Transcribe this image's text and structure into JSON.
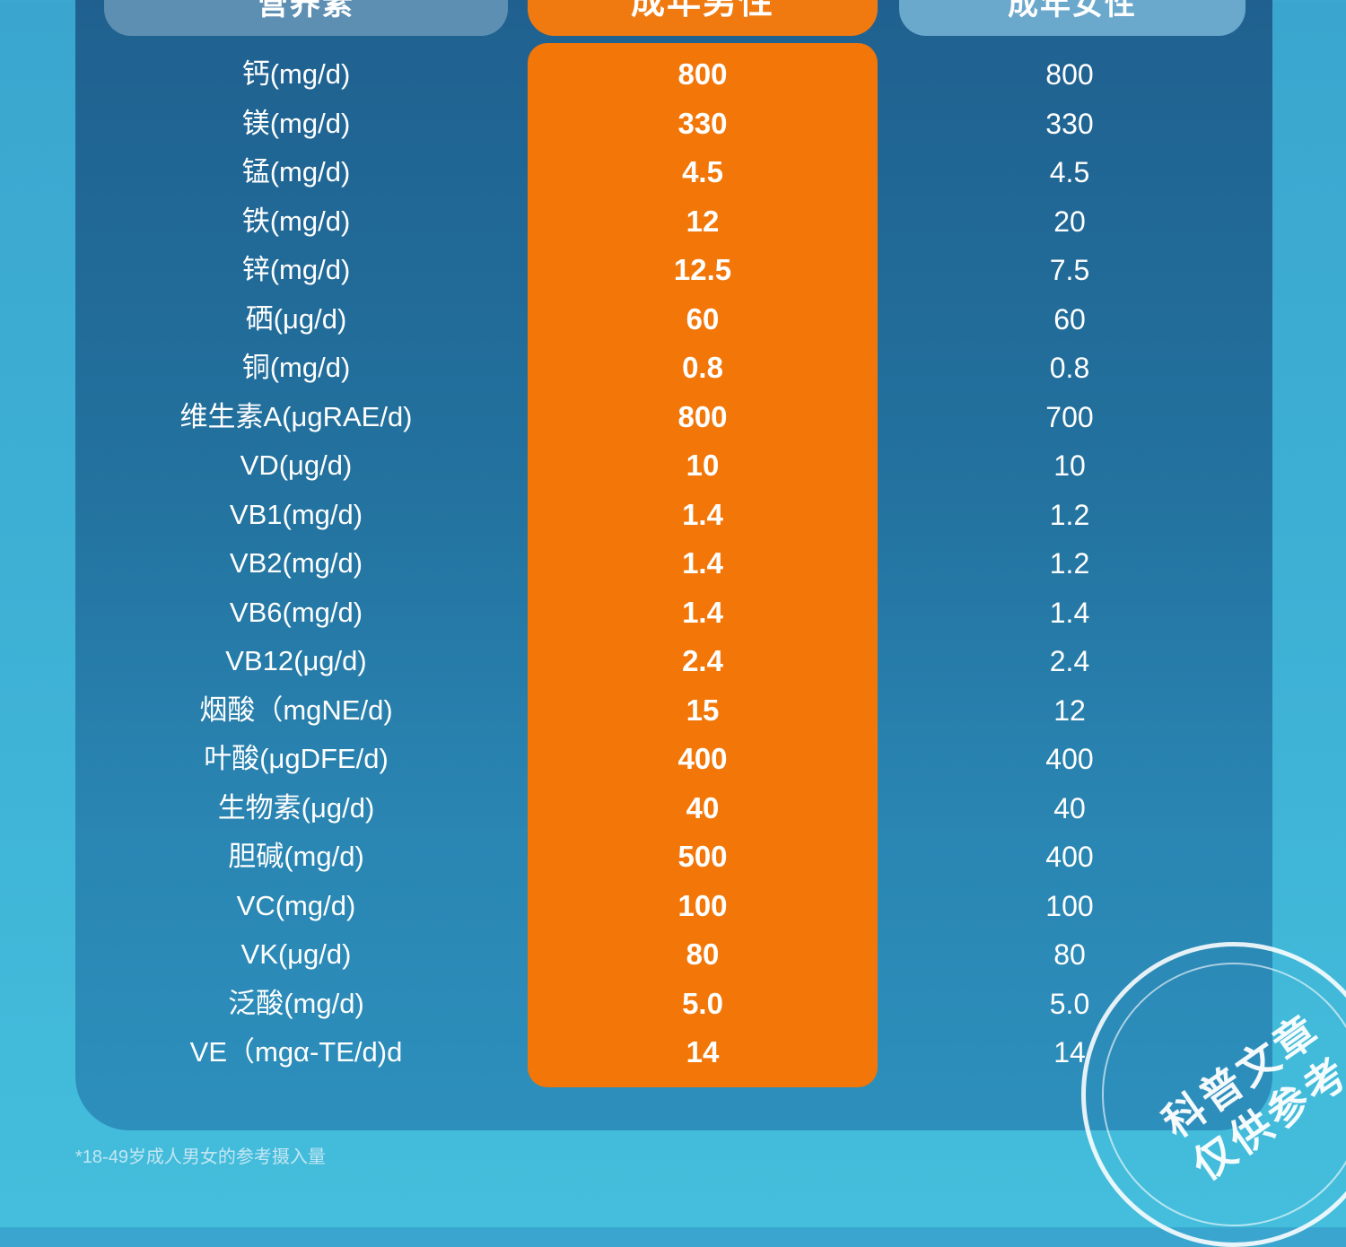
{
  "header": {
    "col_nutrient": "营养素",
    "col_male": "成年男性",
    "col_female": "成年女性"
  },
  "rows": [
    {
      "name": "钙(mg/d)",
      "male": "800",
      "female": "800"
    },
    {
      "name": "镁(mg/d)",
      "male": "330",
      "female": "330"
    },
    {
      "name": "锰(mg/d)",
      "male": "4.5",
      "female": "4.5"
    },
    {
      "name": "铁(mg/d)",
      "male": "12",
      "female": "20"
    },
    {
      "name": "锌(mg/d)",
      "male": "12.5",
      "female": "7.5"
    },
    {
      "name": "硒(μg/d)",
      "male": "60",
      "female": "60"
    },
    {
      "name": "铜(mg/d)",
      "male": "0.8",
      "female": "0.8"
    },
    {
      "name": "维生素A(μgRAE/d)",
      "male": "800",
      "female": "700"
    },
    {
      "name": "VD(μg/d)",
      "male": "10",
      "female": "10"
    },
    {
      "name": "VB1(mg/d)",
      "male": "1.4",
      "female": "1.2"
    },
    {
      "name": "VB2(mg/d)",
      "male": "1.4",
      "female": "1.2"
    },
    {
      "name": "VB6(mg/d)",
      "male": "1.4",
      "female": "1.4"
    },
    {
      "name": "VB12(μg/d)",
      "male": "2.4",
      "female": "2.4"
    },
    {
      "name": "烟酸（mgNE/d)",
      "male": "15",
      "female": "12"
    },
    {
      "name": "叶酸(μgDFE/d)",
      "male": "400",
      "female": "400"
    },
    {
      "name": "生物素(μg/d)",
      "male": "40",
      "female": "40"
    },
    {
      "name": "胆碱(mg/d)",
      "male": "500",
      "female": "400"
    },
    {
      "name": "VC(mg/d)",
      "male": "100",
      "female": "100"
    },
    {
      "name": "VK(μg/d)",
      "male": "80",
      "female": "80"
    },
    {
      "name": "泛酸(mg/d)",
      "male": "5.0",
      "female": "5.0"
    },
    {
      "name": "VE（mgα-TE/d)d",
      "male": "14",
      "female": "14"
    }
  ],
  "footnote": "*18-49岁成人男女的参考摄入量",
  "stamp": {
    "line1": "科普文章",
    "line2": "仅供参考"
  },
  "colors": {
    "panel": "#23729f",
    "highlight": "#f27608",
    "background": "#3fb3d6"
  }
}
